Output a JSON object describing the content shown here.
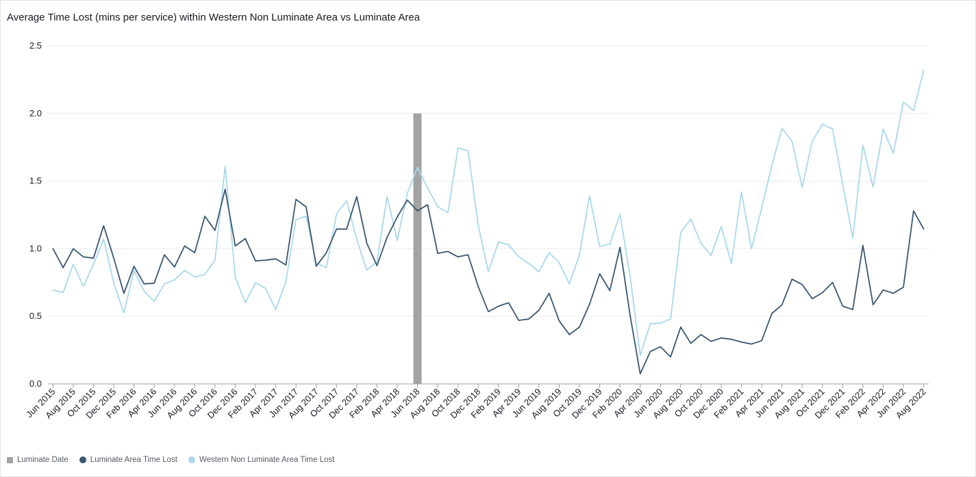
{
  "chart_data": {
    "type": "line",
    "title": "Average Time Lost (mins per service) within Western Non Luminate Area vs Luminate Area",
    "xlabel": "",
    "ylabel": "",
    "ylim": [
      0,
      2.5
    ],
    "y_ticks": [
      "0.0",
      "0.5",
      "1.0",
      "1.5",
      "2.0",
      "2.5"
    ],
    "grid": true,
    "legend_position": "bottom-left",
    "categories": [
      "Jun 2015",
      "Jul 2015",
      "Aug 2015",
      "Sep 2015",
      "Oct 2015",
      "Nov 2015",
      "Dec 2015",
      "Jan 2016",
      "Feb 2016",
      "Mar 2016",
      "Apr 2016",
      "May 2016",
      "Jun 2016",
      "Jul 2016",
      "Aug 2016",
      "Sep 2016",
      "Oct 2016",
      "Nov 2016",
      "Dec 2016",
      "Jan 2017",
      "Feb 2017",
      "Mar 2017",
      "Apr 2017",
      "May 2017",
      "Jun 2017",
      "Jul 2017",
      "Aug 2017",
      "Sep 2017",
      "Oct 2017",
      "Nov 2017",
      "Dec 2017",
      "Jan 2018",
      "Feb 2018",
      "Mar 2018",
      "Apr 2018",
      "May 2018",
      "Jun 2018",
      "Jul 2018",
      "Aug 2018",
      "Sep 2018",
      "Oct 2018",
      "Nov 2018",
      "Dec 2018",
      "Jan 2019",
      "Feb 2019",
      "Mar 2019",
      "Apr 2019",
      "May 2019",
      "Jun 2019",
      "Jul 2019",
      "Aug 2019",
      "Sep 2019",
      "Oct 2019",
      "Nov 2019",
      "Dec 2019",
      "Jan 2020",
      "Feb 2020",
      "Mar 2020",
      "Apr 2020",
      "May 2020",
      "Jun 2020",
      "Jul 2020",
      "Aug 2020",
      "Sep 2020",
      "Oct 2020",
      "Nov 2020",
      "Dec 2020",
      "Jan 2021",
      "Feb 2021",
      "Mar 2021",
      "Apr 2021",
      "May 2021",
      "Jun 2021",
      "Jul 2021",
      "Aug 2021",
      "Sep 2021",
      "Oct 2021",
      "Nov 2021",
      "Dec 2021",
      "Jan 2022",
      "Feb 2022",
      "Mar 2022",
      "Apr 2022",
      "May 2022",
      "Jun 2022",
      "Jul 2022",
      "Aug 2022"
    ],
    "x_tick_labels": [
      "Jun 2015",
      "Aug 2015",
      "Oct 2015",
      "Dec 2015",
      "Feb 2016",
      "Apr 2016",
      "Jun 2016",
      "Aug 2016",
      "Oct 2016",
      "Dec 2016",
      "Feb 2017",
      "Apr 2017",
      "Jun 2017",
      "Aug 2017",
      "Oct 2017",
      "Dec 2017",
      "Feb 2018",
      "Apr 2018",
      "Jun 2018",
      "Aug 2018",
      "Oct 2018",
      "Dec 2018",
      "Feb 2019",
      "Apr 2019",
      "Jun 2019",
      "Aug 2019",
      "Oct 2019",
      "Dec 2019",
      "Feb 2020",
      "Apr 2020",
      "Jun 2020",
      "Aug 2020",
      "Oct 2020",
      "Dec 2020",
      "Feb 2021",
      "Apr 2021",
      "Jun 2021",
      "Aug 2021",
      "Oct 2021",
      "Dec 2021",
      "Feb 2022",
      "Apr 2022",
      "Jun 2022",
      "Aug 2022"
    ],
    "series": [
      {
        "name": "Luminate Area Time Lost",
        "color": "#3a5670",
        "values": [
          1.0,
          0.86,
          1.0,
          0.94,
          0.93,
          1.17,
          0.93,
          0.67,
          0.87,
          0.74,
          0.745,
          0.955,
          0.865,
          1.02,
          0.97,
          1.24,
          1.135,
          1.44,
          1.02,
          1.075,
          0.91,
          0.915,
          0.925,
          0.88,
          1.365,
          1.31,
          0.87,
          0.97,
          1.145,
          1.145,
          1.385,
          1.04,
          0.875,
          1.085,
          1.235,
          1.36,
          1.28,
          1.325,
          0.965,
          0.98,
          0.94,
          0.955,
          0.72,
          0.535,
          0.575,
          0.6,
          0.47,
          0.48,
          0.545,
          0.67,
          0.465,
          0.365,
          0.42,
          0.59,
          0.815,
          0.69,
          1.01,
          0.51,
          0.075,
          0.24,
          0.275,
          0.2,
          0.42,
          0.3,
          0.365,
          0.315,
          0.34,
          0.33,
          0.31,
          0.295,
          0.32,
          0.52,
          0.585,
          0.775,
          0.735,
          0.63,
          0.675,
          0.75,
          0.575,
          0.55,
          1.025,
          0.585,
          0.695,
          0.67,
          0.715,
          1.28,
          1.145
        ]
      },
      {
        "name": "Western Non Luminate Area Time Lost",
        "color": "#a9d8ec",
        "values": [
          0.695,
          0.675,
          0.885,
          0.72,
          0.885,
          1.07,
          0.745,
          0.525,
          0.84,
          0.685,
          0.61,
          0.74,
          0.77,
          0.84,
          0.79,
          0.81,
          0.915,
          1.61,
          0.79,
          0.6,
          0.75,
          0.705,
          0.55,
          0.755,
          1.215,
          1.24,
          0.895,
          0.86,
          1.255,
          1.355,
          1.07,
          0.84,
          0.905,
          1.385,
          1.06,
          1.41,
          1.6,
          1.45,
          1.31,
          1.265,
          1.745,
          1.725,
          1.175,
          0.83,
          1.05,
          1.03,
          0.94,
          0.89,
          0.83,
          0.97,
          0.895,
          0.74,
          0.955,
          1.39,
          1.015,
          1.035,
          1.255,
          0.8,
          0.21,
          0.445,
          0.45,
          0.48,
          1.12,
          1.22,
          1.04,
          0.95,
          1.165,
          0.89,
          1.42,
          1.0,
          1.3,
          1.615,
          1.89,
          1.795,
          1.455,
          1.795,
          1.92,
          1.885,
          1.475,
          1.08,
          1.765,
          1.455,
          1.885,
          1.705,
          2.085,
          2.02,
          2.32
        ]
      }
    ],
    "luminate_date": {
      "name": "Luminate Date",
      "category": "Jun 2018",
      "value": 2.0,
      "color": "#a3a3a3"
    }
  },
  "legend": [
    {
      "label": "Luminate Date",
      "color": "#a3a3a3",
      "shape": "square"
    },
    {
      "label": "Luminate Area Time Lost",
      "color": "#3a5670",
      "shape": "circle"
    },
    {
      "label": "Western Non Luminate Area Time Lost",
      "color": "#a9d8ec",
      "shape": "circle"
    }
  ]
}
